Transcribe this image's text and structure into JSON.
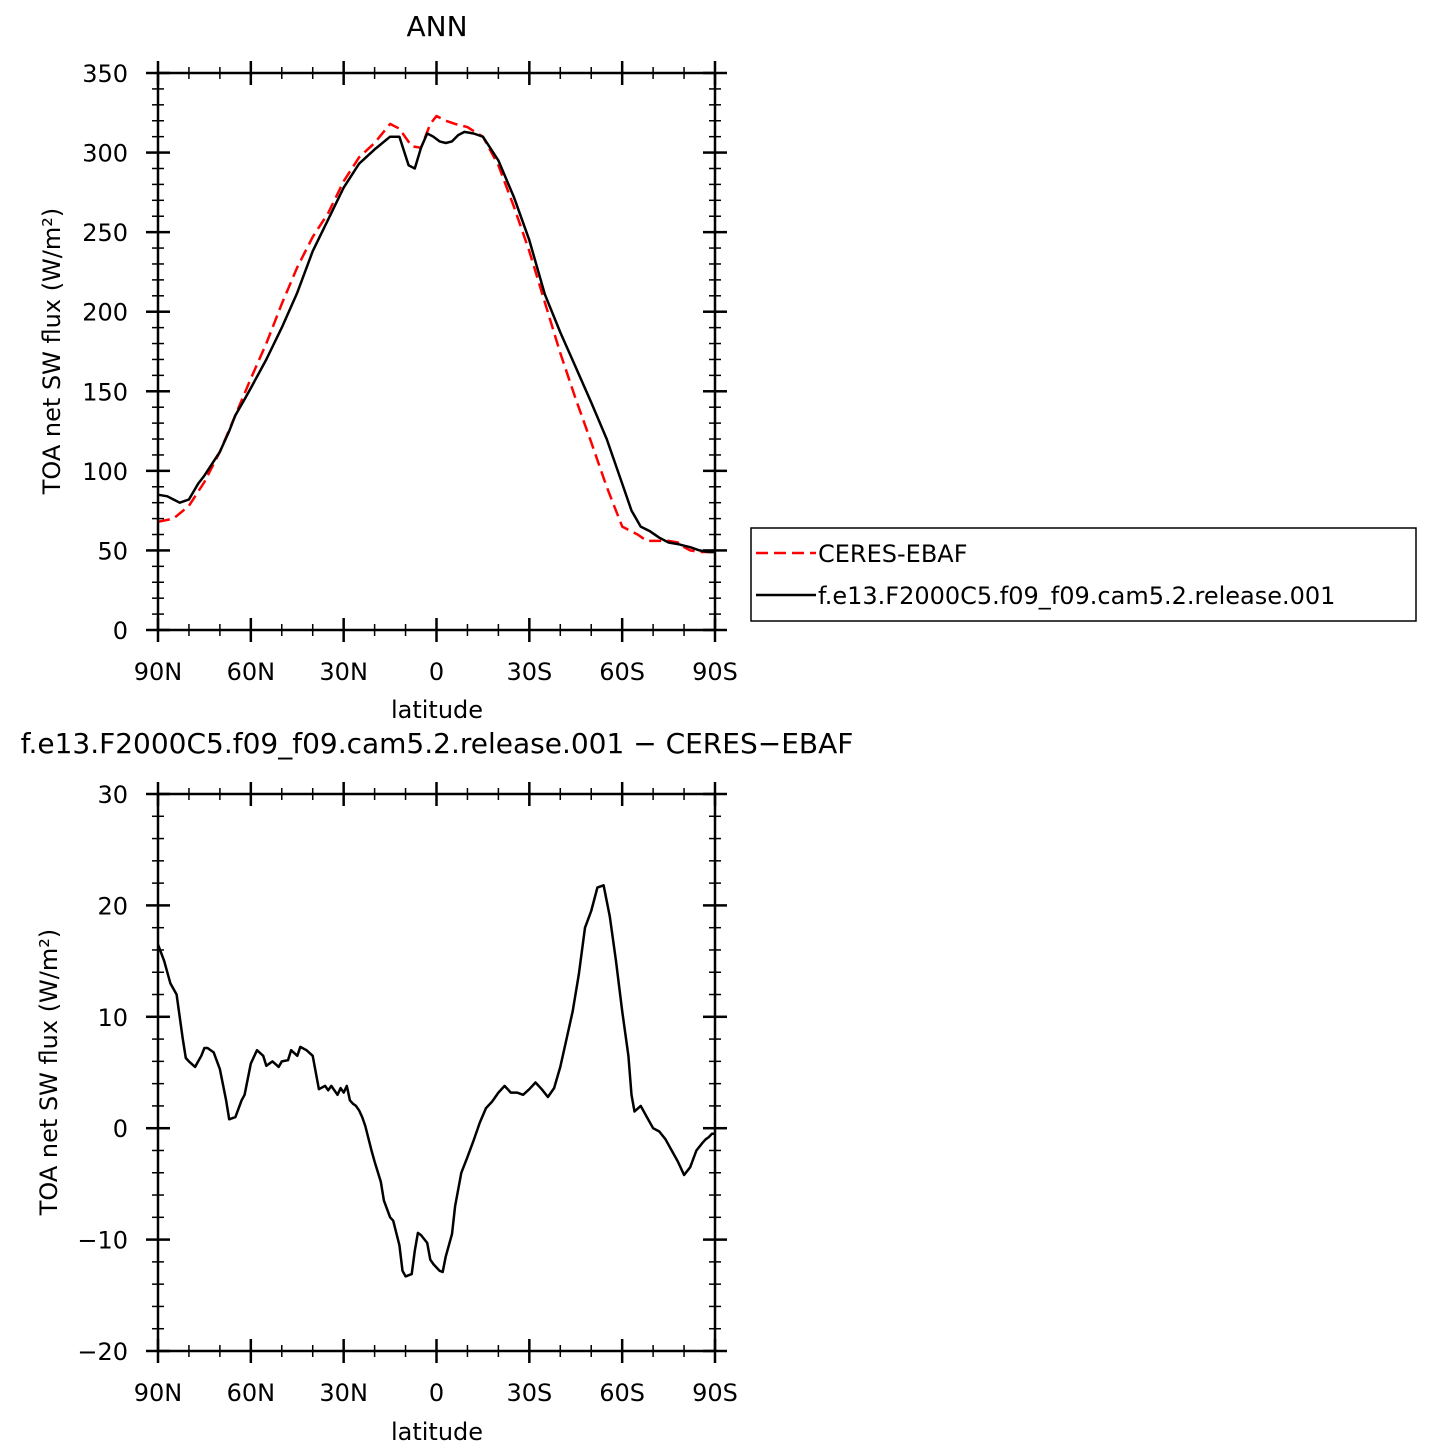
{
  "chart_data": [
    {
      "type": "line",
      "title": "ANN",
      "xlabel": "latitude",
      "ylabel": "TOA net SW flux (W/m²)",
      "xlim": [
        90,
        -90
      ],
      "ylim": [
        0,
        350
      ],
      "xticks": [
        90,
        60,
        30,
        0,
        -30,
        -60,
        -90
      ],
      "xtick_labels": [
        "90N",
        "60N",
        "30N",
        "0",
        "30S",
        "60S",
        "90S"
      ],
      "yticks": [
        0,
        50,
        100,
        150,
        200,
        250,
        300,
        350
      ],
      "ytick_labels": [
        "0",
        "50",
        "100",
        "150",
        "200",
        "250",
        "300",
        "350"
      ],
      "legend": {
        "placement": "right, outside plot",
        "entries": [
          "CERES-EBAF",
          "f.e13.F2000C5.f09_f09.cam5.2.release.001"
        ]
      },
      "series": [
        {
          "name": "CERES-EBAF",
          "color": "#ff0000",
          "dash": "dashed",
          "x": [
            90,
            85,
            80,
            75,
            70,
            65,
            60,
            55,
            50,
            45,
            40,
            35,
            30,
            25,
            20,
            15,
            12,
            8,
            5,
            2,
            0,
            -3,
            -6,
            -10,
            -15,
            -20,
            -25,
            -30,
            -35,
            -40,
            -45,
            -50,
            -55,
            -60,
            -65,
            -68,
            -72,
            -75,
            -78,
            -80,
            -82,
            -85,
            -88,
            -90
          ],
          "y": [
            68,
            70,
            78,
            93,
            112,
            135,
            158,
            180,
            205,
            228,
            247,
            262,
            282,
            297,
            306,
            318,
            315,
            304,
            303,
            318,
            323,
            320,
            318,
            316,
            310,
            292,
            266,
            238,
            206,
            174,
            145,
            118,
            90,
            65,
            60,
            56,
            56,
            56,
            55,
            52,
            50,
            49,
            49,
            49
          ]
        },
        {
          "name": "f.e13.F2000C5.f09_f09.cam5.2.release.001",
          "color": "#000000",
          "dash": "solid",
          "x": [
            90,
            87,
            85,
            83,
            80,
            77,
            75,
            72,
            70,
            67,
            65,
            62,
            60,
            55,
            50,
            45,
            40,
            35,
            30,
            25,
            20,
            15,
            12,
            9,
            7,
            5,
            3,
            1,
            -1,
            -3,
            -5,
            -7,
            -9,
            -12,
            -15,
            -20,
            -25,
            -30,
            -35,
            -40,
            -45,
            -50,
            -55,
            -60,
            -63,
            -66,
            -69,
            -72,
            -75,
            -78,
            -80,
            -82,
            -85,
            -88,
            -90
          ],
          "y": [
            85,
            84,
            82,
            80,
            82,
            92,
            97,
            106,
            112,
            125,
            135,
            145,
            152,
            170,
            190,
            212,
            238,
            258,
            278,
            293,
            302,
            310,
            310,
            292,
            290,
            303,
            312,
            310,
            307,
            306,
            307,
            311,
            313,
            312,
            310,
            295,
            272,
            245,
            211,
            187,
            165,
            143,
            120,
            92,
            75,
            65,
            62,
            58,
            55,
            54,
            53,
            52,
            50,
            49,
            49
          ]
        }
      ]
    },
    {
      "type": "line",
      "title": "f.e13.F2000C5.f09_f09.cam5.2.release.001 − CERES−EBAF",
      "xlabel": "latitude",
      "ylabel": "TOA net SW flux (W/m²)",
      "xlim": [
        90,
        -90
      ],
      "ylim": [
        -20,
        30
      ],
      "xticks": [
        90,
        60,
        30,
        0,
        -30,
        -60,
        -90
      ],
      "xtick_labels": [
        "90N",
        "60N",
        "30N",
        "0",
        "30S",
        "60S",
        "90S"
      ],
      "yticks": [
        -20,
        -10,
        0,
        10,
        20,
        30
      ],
      "ytick_labels": [
        "−20",
        "−10",
        "0",
        "10",
        "20",
        "30"
      ],
      "series": [
        {
          "color": "#000000",
          "dash": "solid",
          "x": [
            90,
            88,
            86,
            84,
            83,
            82,
            81,
            80,
            78,
            76,
            75,
            74,
            72,
            70,
            68,
            67,
            65,
            63,
            62,
            60,
            58,
            56,
            55,
            53,
            51,
            50,
            48,
            47,
            45,
            44,
            42,
            40,
            38,
            36,
            35,
            34,
            32,
            31,
            30,
            29,
            28,
            27,
            26,
            25,
            24,
            23,
            21,
            20,
            18,
            17,
            15,
            14,
            12,
            11,
            10,
            8,
            7,
            6,
            5,
            3,
            2,
            1,
            0,
            -1,
            -2,
            -3,
            -4,
            -5,
            -6,
            -8,
            -10,
            -12,
            -14,
            -16,
            -18,
            -20,
            -22,
            -24,
            -26,
            -28,
            -30,
            -32,
            -34,
            -36,
            -38,
            -40,
            -42,
            -44,
            -46,
            -48,
            -50,
            -52,
            -54,
            -56,
            -58,
            -60,
            -62,
            -63,
            -64,
            -66,
            -68,
            -70,
            -72,
            -74,
            -76,
            -78,
            -80,
            -82,
            -84,
            -86,
            -87,
            -88,
            -89,
            -90
          ],
          "y": [
            16.5,
            15,
            13,
            12,
            10,
            8,
            6.3,
            6,
            5.5,
            6.5,
            7.2,
            7.2,
            6.8,
            5.3,
            2.5,
            0.8,
            1.0,
            2.5,
            3.0,
            5.8,
            7.0,
            6.5,
            5.6,
            6.0,
            5.5,
            6.0,
            6.1,
            7.0,
            6.5,
            7.3,
            7.0,
            6.5,
            3.5,
            3.8,
            3.4,
            3.8,
            3.0,
            3.6,
            3.2,
            3.8,
            2.5,
            2.2,
            2.0,
            1.6,
            1.0,
            0.2,
            -2.0,
            -3.0,
            -4.8,
            -6.5,
            -8.0,
            -8.3,
            -10.5,
            -12.8,
            -13.3,
            -13.1,
            -11.0,
            -9.4,
            -9.6,
            -10.3,
            -11.8,
            -12.2,
            -12.5,
            -12.8,
            -12.9,
            -11.5,
            -10.5,
            -9.5,
            -7.0,
            -4.0,
            -2.6,
            -1.1,
            0.5,
            1.8,
            2.4,
            3.2,
            3.8,
            3.2,
            3.2,
            3.0,
            3.5,
            4.1,
            3.5,
            2.8,
            3.6,
            5.5,
            8.0,
            10.5,
            13.8,
            18.0,
            19.5,
            21.6,
            21.8,
            19.0,
            15.0,
            10.5,
            6.5,
            3.0,
            1.5,
            2.0,
            1.0,
            0.0,
            -0.3,
            -1.0,
            -2.0,
            -3.0,
            -4.2,
            -3.5,
            -2.0,
            -1.3,
            -1.0,
            -0.8,
            -0.5,
            -0.5
          ]
        }
      ]
    }
  ]
}
